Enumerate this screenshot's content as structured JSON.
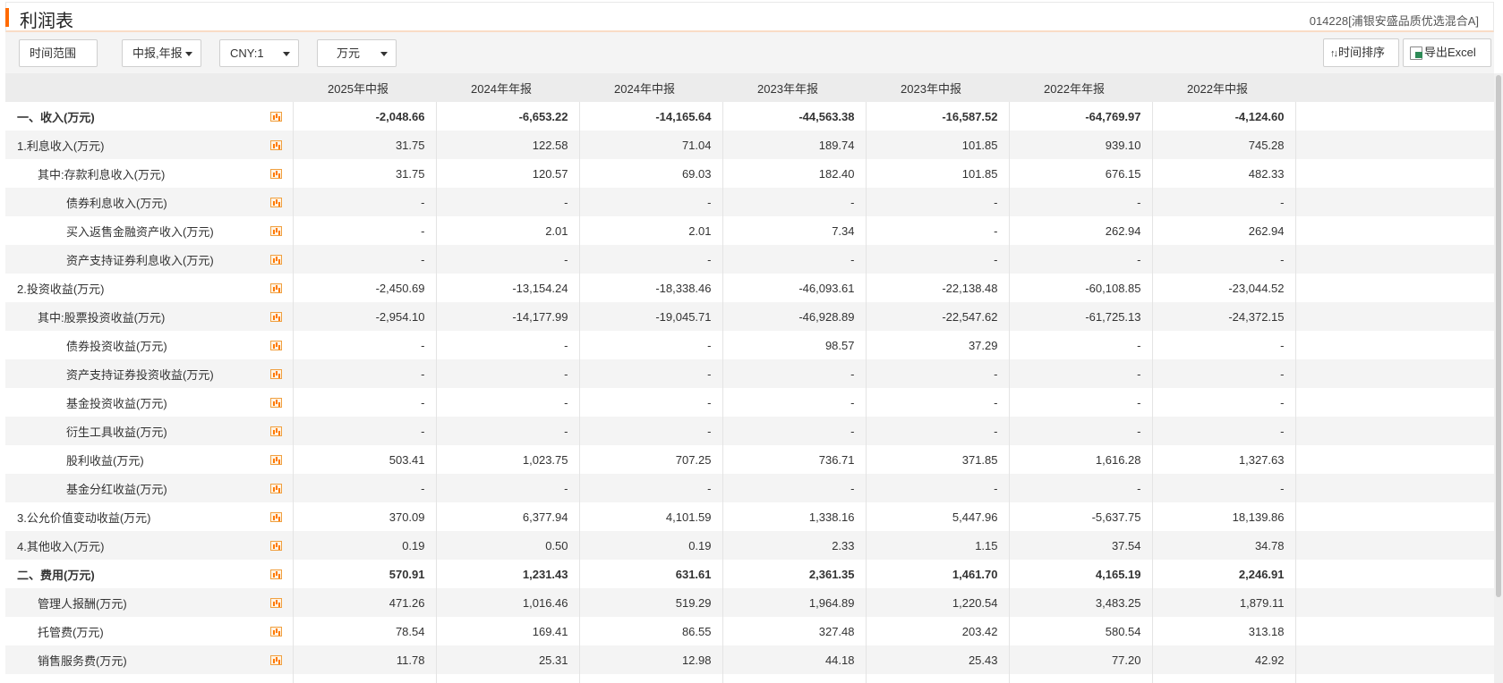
{
  "header": {
    "title": "利润表",
    "fund": "014228[浦银安盛品质优选混合A]"
  },
  "toolbar": {
    "time_range": "时间范围",
    "report_type": "中报,年报",
    "currency": "CNY:1",
    "unit": "万元",
    "sort_label": "时间排序",
    "export_label": "导出Excel"
  },
  "columns": [
    "2025年中报",
    "2024年年报",
    "2024年中报",
    "2023年年报",
    "2023年中报",
    "2022年年报",
    "2022年中报"
  ],
  "rows": [
    {
      "label": "一、收入(万元)",
      "level": 0,
      "bold": true,
      "values": [
        "-2,048.66",
        "-6,653.22",
        "-14,165.64",
        "-44,563.38",
        "-16,587.52",
        "-64,769.97",
        "-4,124.60"
      ]
    },
    {
      "label": "1.利息收入(万元)",
      "level": 0,
      "bold": false,
      "values": [
        "31.75",
        "122.58",
        "71.04",
        "189.74",
        "101.85",
        "939.10",
        "745.28"
      ]
    },
    {
      "label": "其中:存款利息收入(万元)",
      "level": 1,
      "bold": false,
      "values": [
        "31.75",
        "120.57",
        "69.03",
        "182.40",
        "101.85",
        "676.15",
        "482.33"
      ]
    },
    {
      "label": "债券利息收入(万元)",
      "level": 2,
      "bold": false,
      "values": [
        "-",
        "-",
        "-",
        "-",
        "-",
        "-",
        "-"
      ]
    },
    {
      "label": "买入返售金融资产收入(万元)",
      "level": 2,
      "bold": false,
      "values": [
        "-",
        "2.01",
        "2.01",
        "7.34",
        "-",
        "262.94",
        "262.94"
      ]
    },
    {
      "label": "资产支持证券利息收入(万元)",
      "level": 2,
      "bold": false,
      "values": [
        "-",
        "-",
        "-",
        "-",
        "-",
        "-",
        "-"
      ]
    },
    {
      "label": "2.投资收益(万元)",
      "level": 0,
      "bold": false,
      "values": [
        "-2,450.69",
        "-13,154.24",
        "-18,338.46",
        "-46,093.61",
        "-22,138.48",
        "-60,108.85",
        "-23,044.52"
      ]
    },
    {
      "label": "其中:股票投资收益(万元)",
      "level": 1,
      "bold": false,
      "values": [
        "-2,954.10",
        "-14,177.99",
        "-19,045.71",
        "-46,928.89",
        "-22,547.62",
        "-61,725.13",
        "-24,372.15"
      ]
    },
    {
      "label": "债券投资收益(万元)",
      "level": 2,
      "bold": false,
      "values": [
        "-",
        "-",
        "-",
        "98.57",
        "37.29",
        "-",
        "-"
      ]
    },
    {
      "label": "资产支持证券投资收益(万元)",
      "level": 2,
      "bold": false,
      "values": [
        "-",
        "-",
        "-",
        "-",
        "-",
        "-",
        "-"
      ]
    },
    {
      "label": "基金投资收益(万元)",
      "level": 2,
      "bold": false,
      "values": [
        "-",
        "-",
        "-",
        "-",
        "-",
        "-",
        "-"
      ]
    },
    {
      "label": "衍生工具收益(万元)",
      "level": 2,
      "bold": false,
      "values": [
        "-",
        "-",
        "-",
        "-",
        "-",
        "-",
        "-"
      ]
    },
    {
      "label": "股利收益(万元)",
      "level": 2,
      "bold": false,
      "values": [
        "503.41",
        "1,023.75",
        "707.25",
        "736.71",
        "371.85",
        "1,616.28",
        "1,327.63"
      ]
    },
    {
      "label": "基金分红收益(万元)",
      "level": 2,
      "bold": false,
      "values": [
        "-",
        "-",
        "-",
        "-",
        "-",
        "-",
        "-"
      ]
    },
    {
      "label": "3.公允价值变动收益(万元)",
      "level": 0,
      "bold": false,
      "values": [
        "370.09",
        "6,377.94",
        "4,101.59",
        "1,338.16",
        "5,447.96",
        "-5,637.75",
        "18,139.86"
      ]
    },
    {
      "label": "4.其他收入(万元)",
      "level": 0,
      "bold": false,
      "values": [
        "0.19",
        "0.50",
        "0.19",
        "2.33",
        "1.15",
        "37.54",
        "34.78"
      ]
    },
    {
      "label": "二、费用(万元)",
      "level": 0,
      "bold": true,
      "values": [
        "570.91",
        "1,231.43",
        "631.61",
        "2,361.35",
        "1,461.70",
        "4,165.19",
        "2,246.91"
      ]
    },
    {
      "label": "管理人报酬(万元)",
      "level": 1,
      "bold": false,
      "values": [
        "471.26",
        "1,016.46",
        "519.29",
        "1,964.89",
        "1,220.54",
        "3,483.25",
        "1,879.11"
      ]
    },
    {
      "label": "托管费(万元)",
      "level": 1,
      "bold": false,
      "values": [
        "78.54",
        "169.41",
        "86.55",
        "327.48",
        "203.42",
        "580.54",
        "313.18"
      ]
    },
    {
      "label": "销售服务费(万元)",
      "level": 1,
      "bold": false,
      "values": [
        "11.78",
        "25.31",
        "12.98",
        "44.18",
        "25.43",
        "77.20",
        "42.92"
      ]
    },
    {
      "label": "",
      "level": 0,
      "bold": false,
      "values": [
        "",
        "",
        "",
        "",
        "",
        "",
        ""
      ]
    }
  ],
  "icons": {
    "row_chart": "bar-chart-icon",
    "sort": "sort-icon",
    "export": "excel-icon"
  },
  "colors": {
    "accent": "#ff6a00",
    "header_bg": "#ececec",
    "row_alt": "#f4f4f4"
  }
}
